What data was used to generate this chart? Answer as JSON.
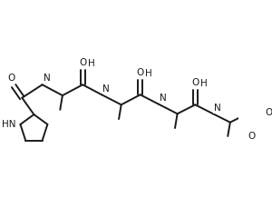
{
  "background": "#ffffff",
  "line_color": "#1a1a1a",
  "line_width": 1.4,
  "font_size": 7.5,
  "xlim": [
    0,
    10
  ],
  "ylim": [
    0,
    7.5
  ]
}
